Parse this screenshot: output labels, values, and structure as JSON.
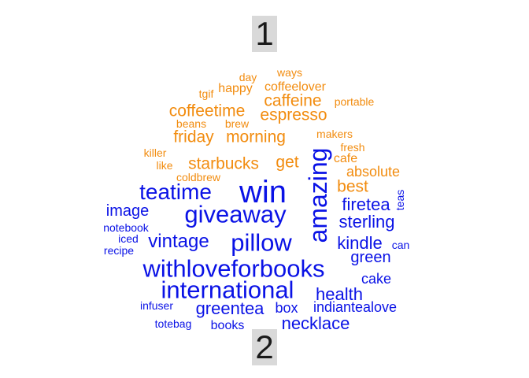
{
  "colors": {
    "group1": "#f28c0f",
    "group2": "#0a12e6",
    "label_bg": "#d9d9d9"
  },
  "labels": [
    "1",
    "2"
  ],
  "group1_words": [
    "ways",
    "day",
    "coffeelover",
    "happy",
    "tgif",
    "caffeine",
    "portable",
    "coffeetime",
    "espresso",
    "beans",
    "brew",
    "friday",
    "morning",
    "makers",
    "fresh",
    "killer",
    "cafe",
    "starbucks",
    "get",
    "like",
    "absolute",
    "coldbrew",
    "best"
  ],
  "group2_words": [
    "win",
    "amazing",
    "teatime",
    "giveaway",
    "firetea",
    "teas",
    "image",
    "sterling",
    "notebook",
    "pillow",
    "vintage",
    "kindle",
    "iced",
    "can",
    "recipe",
    "green",
    "withloveforbooks",
    "cake",
    "international",
    "health",
    "infuser",
    "greentea",
    "box",
    "indiantealove",
    "necklace",
    "totebag",
    "books"
  ]
}
